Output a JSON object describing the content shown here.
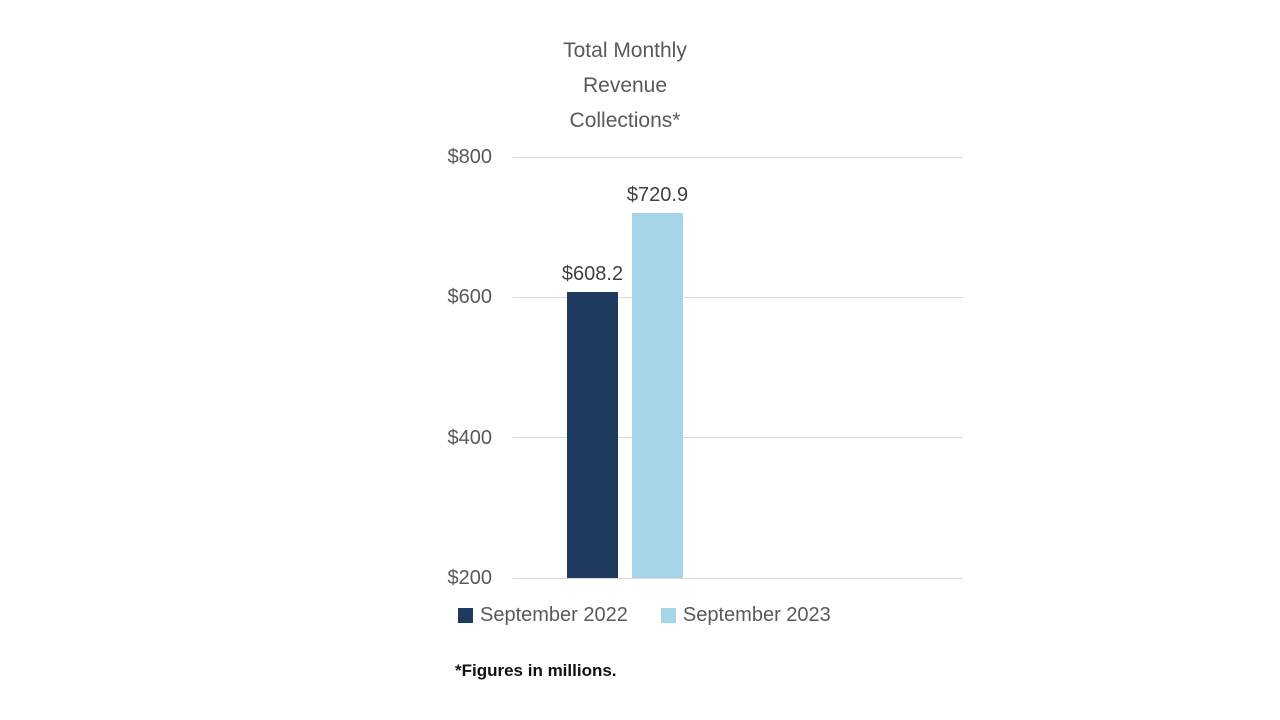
{
  "page": {
    "background": "#ffffff"
  },
  "chart_data": {
    "type": "bar",
    "title": "Total Monthly\nRevenue\nCollections*",
    "footnote": "*Figures in millions.",
    "categories": [
      "September"
    ],
    "series": [
      {
        "name": "September 2022",
        "value": 608.2,
        "data_label": "$608.2",
        "color": "#1f3a5f"
      },
      {
        "name": "September 2023",
        "value": 720.9,
        "data_label": "$720.9",
        "color": "#a6d4e8"
      }
    ],
    "ylim": [
      200,
      800
    ],
    "yticks": [
      {
        "value": 200,
        "label": "$200"
      },
      {
        "value": 400,
        "label": "$400"
      },
      {
        "value": 600,
        "label": "$600"
      },
      {
        "value": 800,
        "label": "$800"
      }
    ],
    "grid": true,
    "gridline_color": "#d9d9d9",
    "axis_text_color": "#595959",
    "data_label_color": "#404040",
    "legend_position": "bottom"
  }
}
